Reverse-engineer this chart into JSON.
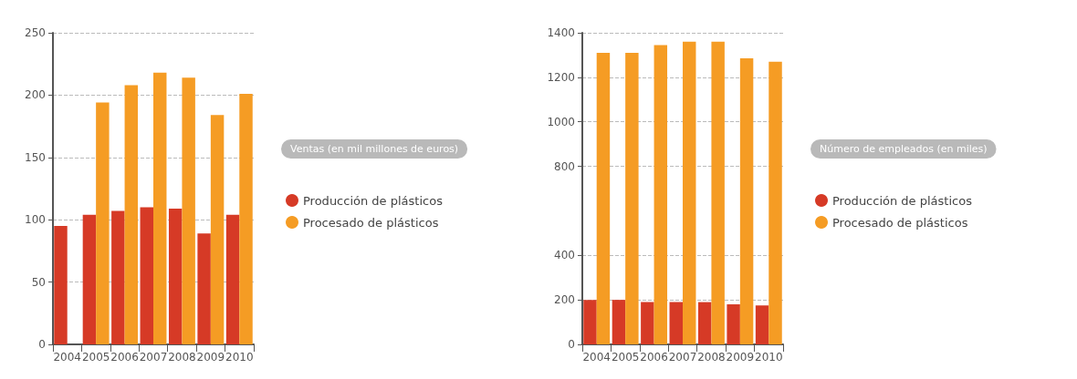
{
  "chart_data": [
    {
      "type": "bar",
      "legend_title": "Ventas (en mil millones de euros)",
      "categories": [
        "2004",
        "2005",
        "2006",
        "2007",
        "2008",
        "2009",
        "2010"
      ],
      "series": [
        {
          "name": "Producción de plásticos",
          "color": "#d63a26",
          "values": [
            95,
            104,
            107,
            110,
            109,
            89,
            104
          ]
        },
        {
          "name": "Procesado de plásticos",
          "color": "#f59c24",
          "values": [
            null,
            194,
            208,
            218,
            214,
            184,
            201
          ]
        }
      ],
      "ylim": [
        0,
        250
      ],
      "yticks": [
        0,
        50,
        100,
        150,
        200,
        250
      ],
      "grid": "y",
      "legend": "right"
    },
    {
      "type": "bar",
      "legend_title": "Número de empleados (en miles)",
      "categories": [
        "2004",
        "2005",
        "2006",
        "2007",
        "2008",
        "2009",
        "2010"
      ],
      "series": [
        {
          "name": "Producción de plásticos",
          "color": "#d63a26",
          "values": [
            200,
            200,
            190,
            190,
            190,
            180,
            175
          ]
        },
        {
          "name": "Procesado de plásticos",
          "color": "#f59c24",
          "values": [
            1310,
            1310,
            1345,
            1360,
            1360,
            1285,
            1270
          ]
        }
      ],
      "ylim": [
        0,
        1400
      ],
      "yticks": [
        0,
        200,
        400,
        800,
        1000,
        1200,
        1400
      ],
      "grid": "y",
      "legend": "right"
    }
  ]
}
